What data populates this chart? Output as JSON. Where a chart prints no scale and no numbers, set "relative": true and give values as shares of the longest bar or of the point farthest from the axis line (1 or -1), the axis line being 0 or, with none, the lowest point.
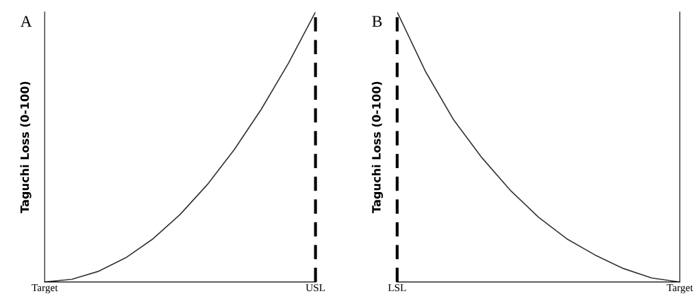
{
  "chart_data": [
    {
      "type": "line",
      "title": "A",
      "ylabel": "Taguchi Loss (0-100)",
      "relative": true,
      "color": "#333333",
      "categories": [
        "Target",
        null,
        null,
        null,
        null,
        null,
        null,
        null,
        null,
        null,
        "USL"
      ],
      "values": [
        0,
        0.01,
        0.04,
        0.09,
        0.16,
        0.25,
        0.36,
        0.49,
        0.64,
        0.81,
        1
      ],
      "ref_lines": [
        {
          "axis": "x",
          "value": "USL",
          "color": "#000000",
          "line_style": "dashed"
        }
      ]
    },
    {
      "type": "line",
      "title": "B",
      "ylabel": "Taguchi Loss (0-100)",
      "relative": true,
      "color": "#333333",
      "categories": [
        "LSL",
        null,
        null,
        null,
        null,
        null,
        null,
        null,
        null,
        null,
        "Target"
      ],
      "values": [
        1,
        0.78,
        0.6,
        0.46,
        0.34,
        0.24,
        0.16,
        0.1,
        0.05,
        0.015,
        0
      ],
      "ref_lines": [
        {
          "axis": "x",
          "value": "LSL",
          "color": "#000000",
          "line_style": "dashed"
        }
      ]
    }
  ]
}
